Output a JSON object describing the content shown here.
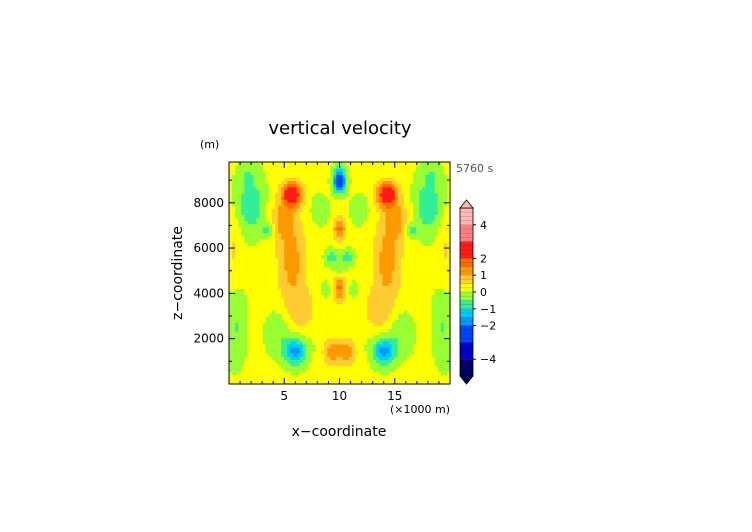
{
  "chart_data": {
    "type": "heatmap",
    "title": "vertical velocity",
    "xlabel": "x−coordinate",
    "ylabel": "z−coordinate",
    "x_unit": "(×1000 m)",
    "y_unit": "(m)",
    "time_label": "5760 s",
    "xlim": [
      0,
      20
    ],
    "ylim": [
      0,
      9800
    ],
    "x_ticks": [
      5,
      10,
      15
    ],
    "y_ticks": [
      2000,
      4000,
      6000,
      8000
    ],
    "x_tick_labels": [
      "5",
      "10",
      "15"
    ],
    "y_tick_labels": [
      "2000",
      "4000",
      "6000",
      "8000"
    ],
    "colorbar": {
      "range": [
        -5,
        5
      ],
      "tick_values": [
        4,
        2,
        1,
        0,
        -1,
        -2,
        -4
      ],
      "tick_labels": [
        "4",
        "2",
        "1",
        "0",
        "−1",
        "−2",
        "−4"
      ],
      "levels": [
        {
          "from": 4,
          "to": 5,
          "color": "#ffb6b6"
        },
        {
          "from": 3,
          "to": 4,
          "color": "#ff8080"
        },
        {
          "from": 2,
          "to": 3,
          "color": "#ff1a1a"
        },
        {
          "from": 1.5,
          "to": 2,
          "color": "#ff6a00"
        },
        {
          "from": 1,
          "to": 1.5,
          "color": "#ff9900"
        },
        {
          "from": 0.5,
          "to": 1,
          "color": "#ffcc33"
        },
        {
          "from": 0,
          "to": 0.5,
          "color": "#ffff00"
        },
        {
          "from": -0.5,
          "to": 0,
          "color": "#99ff33"
        },
        {
          "from": -1,
          "to": -0.5,
          "color": "#33ee99"
        },
        {
          "from": -1.5,
          "to": -1,
          "color": "#00ccff"
        },
        {
          "from": -2,
          "to": -1.5,
          "color": "#0099ff"
        },
        {
          "from": -3,
          "to": -2,
          "color": "#0044ff"
        },
        {
          "from": -4,
          "to": -3,
          "color": "#0000cc"
        },
        {
          "from": -5,
          "to": -4,
          "color": "#000066"
        }
      ]
    },
    "features": [
      {
        "x": 5.7,
        "z": 8400,
        "value": 2.5
      },
      {
        "x": 14.3,
        "z": 8400,
        "value": 2.5
      },
      {
        "x": 10,
        "z": 8900,
        "value": -1.8
      },
      {
        "x": 10,
        "z": 6900,
        "value": 1.2
      },
      {
        "x": 10,
        "z": 4300,
        "value": 1.2
      },
      {
        "x": 9.5,
        "z": 1600,
        "value": 1.3
      },
      {
        "x": 10.5,
        "z": 1600,
        "value": 1.3
      },
      {
        "x": 6,
        "z": 1500,
        "value": -1.8
      },
      {
        "x": 14,
        "z": 1500,
        "value": -1.8
      },
      {
        "x": 3.5,
        "z": 6800,
        "value": -1.2
      },
      {
        "x": 16.5,
        "z": 6800,
        "value": -1.2
      }
    ]
  }
}
